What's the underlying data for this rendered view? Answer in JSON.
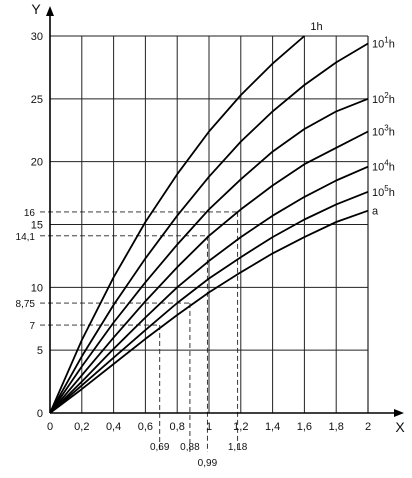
{
  "chart_data": {
    "type": "line",
    "xlabel": "X",
    "ylabel": "Y",
    "xlim": [
      0,
      2
    ],
    "ylim": [
      0,
      30
    ],
    "grid": true,
    "x_ticks": [
      {
        "value": 0,
        "label": "0"
      },
      {
        "value": 0.2,
        "label": "0,2"
      },
      {
        "value": 0.4,
        "label": "0,4"
      },
      {
        "value": 0.6,
        "label": "0,6"
      },
      {
        "value": 0.8,
        "label": "0,8"
      },
      {
        "value": 1.0,
        "label": "1"
      },
      {
        "value": 1.2,
        "label": "1,2"
      },
      {
        "value": 1.4,
        "label": "1,4"
      },
      {
        "value": 1.6,
        "label": "1,6"
      },
      {
        "value": 1.8,
        "label": "1,8"
      },
      {
        "value": 2.0,
        "label": "2"
      }
    ],
    "y_ticks": [
      {
        "value": 0,
        "label": "0"
      },
      {
        "value": 5,
        "label": "5"
      },
      {
        "value": 10,
        "label": "10"
      },
      {
        "value": 15,
        "label": "15"
      },
      {
        "value": 20,
        "label": "20"
      },
      {
        "value": 25,
        "label": "25"
      },
      {
        "value": 30,
        "label": "30"
      }
    ],
    "series": [
      {
        "name": "1h",
        "label_main": "1h",
        "label_exp": "",
        "x": [
          0,
          0.2,
          0.4,
          0.6,
          0.8,
          1.0,
          1.2,
          1.4,
          1.6
        ],
        "y": [
          0,
          5.8,
          10.8,
          15.2,
          19.0,
          22.4,
          25.3,
          27.8,
          30.0
        ]
      },
      {
        "name": "10^1 h",
        "label_main": "10",
        "label_exp": "1",
        "label_suffix": "h",
        "x": [
          0,
          0.2,
          0.4,
          0.6,
          0.8,
          1.0,
          1.2,
          1.4,
          1.6,
          1.8,
          2.0
        ],
        "y": [
          0,
          4.5,
          8.6,
          12.3,
          15.7,
          18.8,
          21.6,
          24.0,
          26.1,
          27.9,
          29.4
        ]
      },
      {
        "name": "10^2 h",
        "label_main": "10",
        "label_exp": "2",
        "label_suffix": "h",
        "x": [
          0,
          0.2,
          0.4,
          0.6,
          0.8,
          1.0,
          1.2,
          1.4,
          1.6,
          1.8,
          2.0
        ],
        "y": [
          0,
          3.7,
          7.2,
          10.4,
          13.4,
          16.2,
          18.6,
          20.8,
          22.6,
          24.0,
          25.0
        ]
      },
      {
        "name": "10^3 h",
        "label_main": "10",
        "label_exp": "3",
        "label_suffix": "h",
        "x": [
          0,
          0.2,
          0.4,
          0.6,
          0.8,
          1.0,
          1.2,
          1.4,
          1.6,
          1.8,
          2.0
        ],
        "y": [
          0,
          3.0,
          6.0,
          8.9,
          11.6,
          14.1,
          16.2,
          18.1,
          19.8,
          21.1,
          22.4
        ]
      },
      {
        "name": "10^4 h",
        "label_main": "10",
        "label_exp": "4",
        "label_suffix": "h",
        "x": [
          0,
          0.2,
          0.4,
          0.6,
          0.8,
          1.0,
          1.2,
          1.4,
          1.6,
          1.8,
          2.0
        ],
        "y": [
          0,
          2.5,
          5.1,
          7.6,
          10.0,
          12.1,
          14.0,
          15.7,
          17.2,
          18.5,
          19.6
        ]
      },
      {
        "name": "10^5 h",
        "label_main": "10",
        "label_exp": "5",
        "label_suffix": "h",
        "x": [
          0,
          0.2,
          0.4,
          0.6,
          0.8,
          1.0,
          1.2,
          1.4,
          1.6,
          1.8,
          2.0
        ],
        "y": [
          0,
          2.2,
          4.4,
          6.6,
          8.75,
          10.7,
          12.4,
          14.0,
          15.4,
          16.6,
          17.6
        ]
      },
      {
        "name": "a",
        "label_main": "a",
        "label_exp": "",
        "x": [
          0,
          0.2,
          0.4,
          0.6,
          0.8,
          1.0,
          1.2,
          1.4,
          1.6,
          1.8,
          2.0
        ],
        "y": [
          0,
          1.9,
          3.9,
          5.9,
          7.8,
          9.6,
          11.2,
          12.7,
          14.0,
          15.2,
          16.1
        ]
      }
    ],
    "reference_lines": [
      {
        "y": 16,
        "x": 1.18,
        "y_label": "16",
        "x_label": "1,18"
      },
      {
        "y": 14.1,
        "x": 0.99,
        "y_label": "14,1",
        "x_label": "0,99"
      },
      {
        "y": 8.75,
        "x": 0.88,
        "y_label": "8,75",
        "x_label": "0,88"
      },
      {
        "y": 7,
        "x": 0.69,
        "y_label": "7",
        "x_label": "0,69"
      }
    ]
  }
}
